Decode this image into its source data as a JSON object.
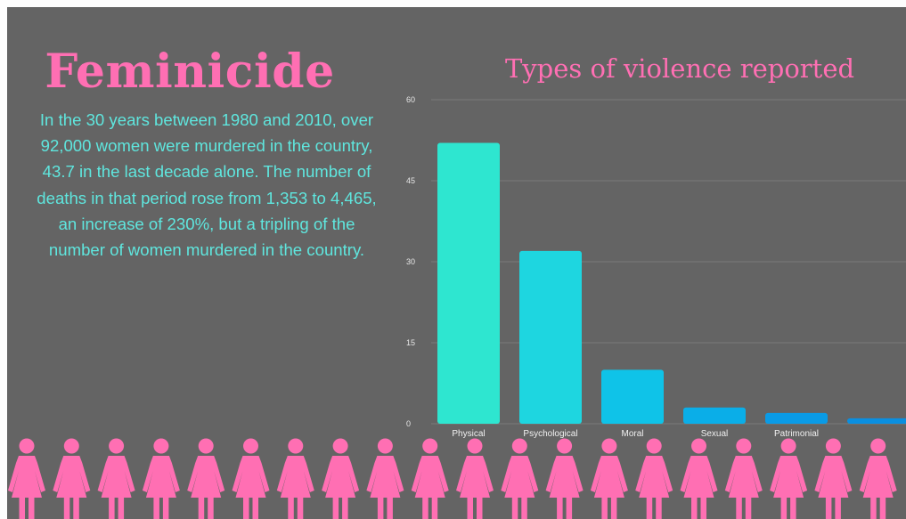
{
  "header": {
    "title": "Feminicide"
  },
  "description": {
    "lines": [
      "In the 30 years between 1980 and 2010, over",
      "92,000 women were murdered in the country,",
      "43.7 in the last decade alone. The number of",
      "deaths in that period rose from 1,353 to 4,465,",
      "an increase of 230%, but a tripling of the",
      "number of women murdered in the country."
    ]
  },
  "chart_data": {
    "type": "bar",
    "title": "Types of violence reported",
    "xlabel": "",
    "ylabel": "",
    "categories": [
      "Physical",
      "Psychological",
      "Moral",
      "Sexual",
      "Patrimonial",
      ""
    ],
    "values": [
      52,
      32,
      10,
      3,
      2,
      1
    ],
    "ylim": [
      0,
      60
    ],
    "yticks": [
      0,
      15,
      30,
      45,
      60
    ],
    "grid": true,
    "legend": "none",
    "colors": [
      "#2ee6d0",
      "#1ed6e0",
      "#0fc3e8",
      "#0aaee8",
      "#0a9be6",
      "#0a8fe0"
    ]
  },
  "decoration": {
    "figure_icon": "woman-figure-icon",
    "figure_count": 20,
    "figure_color": "#ff6fb3"
  },
  "colors": {
    "background": "#646464",
    "accent_pink": "#ff6fb3",
    "accent_teal": "#5fe6de",
    "grid": "#7a7a7a"
  }
}
